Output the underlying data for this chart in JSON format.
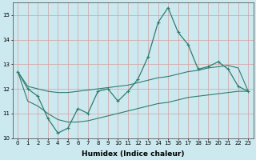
{
  "x": [
    0,
    1,
    2,
    3,
    4,
    5,
    6,
    7,
    8,
    9,
    10,
    11,
    12,
    13,
    14,
    15,
    16,
    17,
    18,
    19,
    20,
    21,
    22,
    23
  ],
  "y_main": [
    12.7,
    12.0,
    11.7,
    10.8,
    10.2,
    10.4,
    11.2,
    11.0,
    11.9,
    12.0,
    11.5,
    11.9,
    12.4,
    13.3,
    14.7,
    15.3,
    14.3,
    13.8,
    12.8,
    12.9,
    13.1,
    12.8,
    12.1,
    11.9
  ],
  "y_upper": [
    12.7,
    12.1,
    12.0,
    11.9,
    11.85,
    11.85,
    11.9,
    11.95,
    12.0,
    12.05,
    12.1,
    12.15,
    12.25,
    12.35,
    12.45,
    12.5,
    12.6,
    12.7,
    12.75,
    12.85,
    12.9,
    12.95,
    12.85,
    11.9
  ],
  "y_lower": [
    12.7,
    11.5,
    11.3,
    11.0,
    10.75,
    10.65,
    10.65,
    10.7,
    10.8,
    10.9,
    11.0,
    11.1,
    11.2,
    11.3,
    11.4,
    11.45,
    11.55,
    11.65,
    11.7,
    11.75,
    11.8,
    11.85,
    11.9,
    11.9
  ],
  "line_color": "#2e7d6e",
  "bg_color": "#cce9f0",
  "grid_color": "#b0ccd4",
  "xlabel": "Humidex (Indice chaleur)",
  "ylim": [
    10,
    15.5
  ],
  "xlim": [
    -0.5,
    23.5
  ],
  "yticks": [
    10,
    11,
    12,
    13,
    14,
    15
  ],
  "xticks": [
    0,
    1,
    2,
    3,
    4,
    5,
    6,
    7,
    8,
    9,
    10,
    11,
    12,
    13,
    14,
    15,
    16,
    17,
    18,
    19,
    20,
    21,
    22,
    23
  ],
  "xlabel_fontsize": 6.5,
  "ylabel_fontsize": 6.5,
  "tick_fontsize": 5.0
}
